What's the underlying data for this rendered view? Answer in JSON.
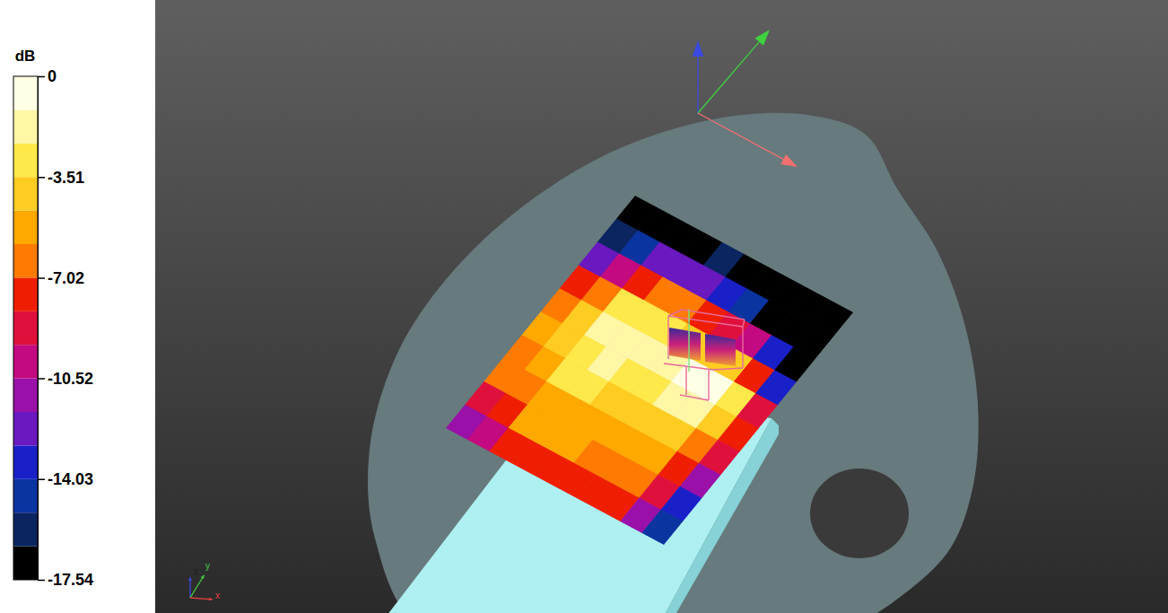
{
  "chart_data": {
    "type": "heatmap",
    "colorbar": {
      "title": "dB",
      "range": [
        -17.54,
        0
      ],
      "ticks": [
        0,
        -3.51,
        -7.02,
        -10.52,
        -14.03,
        -17.54
      ]
    },
    "annotations": [
      "z",
      "y",
      "x"
    ],
    "cells": [
      [
        -17.54,
        -17.5,
        -17,
        -16.5,
        -16,
        -16.5,
        -17,
        -17.5,
        -17.54,
        -17.54
      ],
      [
        -16,
        -14.5,
        -12,
        -12,
        -12.5,
        -13.5,
        -15,
        -16.5,
        -17.2,
        -17.54
      ],
      [
        -12.5,
        -10,
        -7.5,
        -7,
        -7,
        -7.5,
        -8.5,
        -10,
        -13.5,
        -17
      ],
      [
        -8,
        -6,
        -3.5,
        -3,
        -3.5,
        -3.8,
        -4,
        -4.5,
        -8,
        -13
      ],
      [
        -6,
        -4,
        -1.5,
        -1.2,
        -2,
        -1.8,
        -1,
        0,
        -3.5,
        -8.5
      ],
      [
        -5.5,
        -4,
        -2.5,
        -2,
        -2.5,
        -2.5,
        -1.5,
        -1.5,
        -4,
        -8
      ],
      [
        -6,
        -4.8,
        -3.5,
        -3.5,
        -4,
        -4.5,
        -4.5,
        -4.5,
        -6,
        -9
      ],
      [
        -7,
        -6,
        -5,
        -4.8,
        -5.2,
        -5.5,
        -5.5,
        -5.5,
        -7.5,
        -11
      ],
      [
        -9,
        -7.5,
        -5.5,
        -5.5,
        -5.8,
        -6,
        -6,
        -6.2,
        -9,
        -13
      ],
      [
        -11,
        -9.5,
        -7.5,
        -7.3,
        -7.4,
        -7.5,
        -7.5,
        -7.8,
        -11,
        -15
      ]
    ]
  }
}
